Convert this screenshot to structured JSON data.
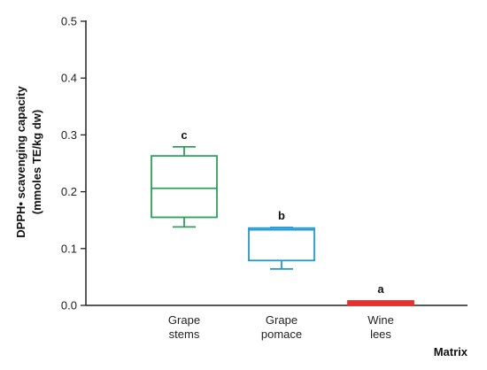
{
  "chart_data": {
    "type": "boxplot",
    "ylabel": [
      "DPPH• scavenging capacity",
      "(mmoles TE/kg dw)"
    ],
    "xlabel": "Matrix",
    "ylim": [
      0,
      0.5
    ],
    "yticks": [
      "0.0",
      "0.1",
      "0.2",
      "0.3",
      "0.4",
      "0.5"
    ],
    "grid": false,
    "categories": [
      {
        "label": [
          "Grape",
          "stems"
        ],
        "color": "#2ca05a",
        "min": 0.138,
        "q1": 0.155,
        "median": 0.206,
        "q3": 0.263,
        "max": 0.279,
        "significance": "c"
      },
      {
        "label": [
          "Grape",
          "pomace"
        ],
        "color": "#1f9ad6",
        "min": 0.064,
        "q1": 0.079,
        "median": 0.133,
        "q3": 0.136,
        "max": 0.137,
        "significance": "b"
      },
      {
        "label": [
          "Wine",
          "lees"
        ],
        "color": "#e8302e",
        "min": 0.003,
        "q1": 0.004,
        "median": 0.005,
        "q3": 0.006,
        "max": 0.007,
        "significance": "a"
      }
    ]
  }
}
